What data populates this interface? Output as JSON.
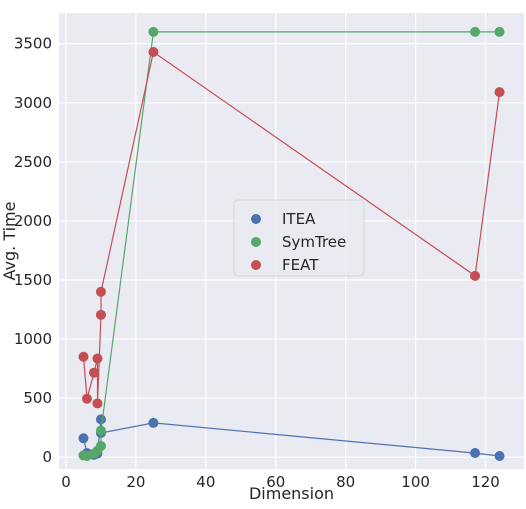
{
  "chart_data": {
    "type": "scatter",
    "title": "",
    "xlabel": "Dimension",
    "ylabel": "Avg. Time",
    "xlim": [
      -2,
      131
    ],
    "ylim": [
      -100,
      3760
    ],
    "xticks": [
      0,
      20,
      40,
      60,
      80,
      100,
      120
    ],
    "yticks": [
      0,
      500,
      1000,
      1500,
      2000,
      2500,
      3000,
      3500
    ],
    "grid": true,
    "legend_position": "center",
    "background_color": "#eaeaf2",
    "series": [
      {
        "name": "ITEA",
        "color": "#4c72b0",
        "points": [
          {
            "x": 5,
            "y": 160
          },
          {
            "x": 6,
            "y": 35
          },
          {
            "x": 8,
            "y": 20
          },
          {
            "x": 9,
            "y": 30
          },
          {
            "x": 10,
            "y": 320
          },
          {
            "x": 10,
            "y": 205
          },
          {
            "x": 25,
            "y": 290
          },
          {
            "x": 117,
            "y": 35
          },
          {
            "x": 124,
            "y": 10
          }
        ]
      },
      {
        "name": "SymTree",
        "color": "#55a868",
        "points": [
          {
            "x": 5,
            "y": 15
          },
          {
            "x": 6,
            "y": 10
          },
          {
            "x": 8,
            "y": 30
          },
          {
            "x": 9,
            "y": 55
          },
          {
            "x": 10,
            "y": 95
          },
          {
            "x": 10,
            "y": 225
          },
          {
            "x": 25,
            "y": 3600
          },
          {
            "x": 117,
            "y": 3600
          },
          {
            "x": 124,
            "y": 3600
          }
        ]
      },
      {
        "name": "FEAT",
        "color": "#c44e52",
        "points": [
          {
            "x": 5,
            "y": 850
          },
          {
            "x": 6,
            "y": 495
          },
          {
            "x": 8,
            "y": 715
          },
          {
            "x": 9,
            "y": 835
          },
          {
            "x": 9,
            "y": 455
          },
          {
            "x": 10,
            "y": 1205
          },
          {
            "x": 10,
            "y": 1400
          },
          {
            "x": 25,
            "y": 3430
          },
          {
            "x": 117,
            "y": 1535
          },
          {
            "x": 124,
            "y": 3090
          }
        ]
      }
    ]
  }
}
